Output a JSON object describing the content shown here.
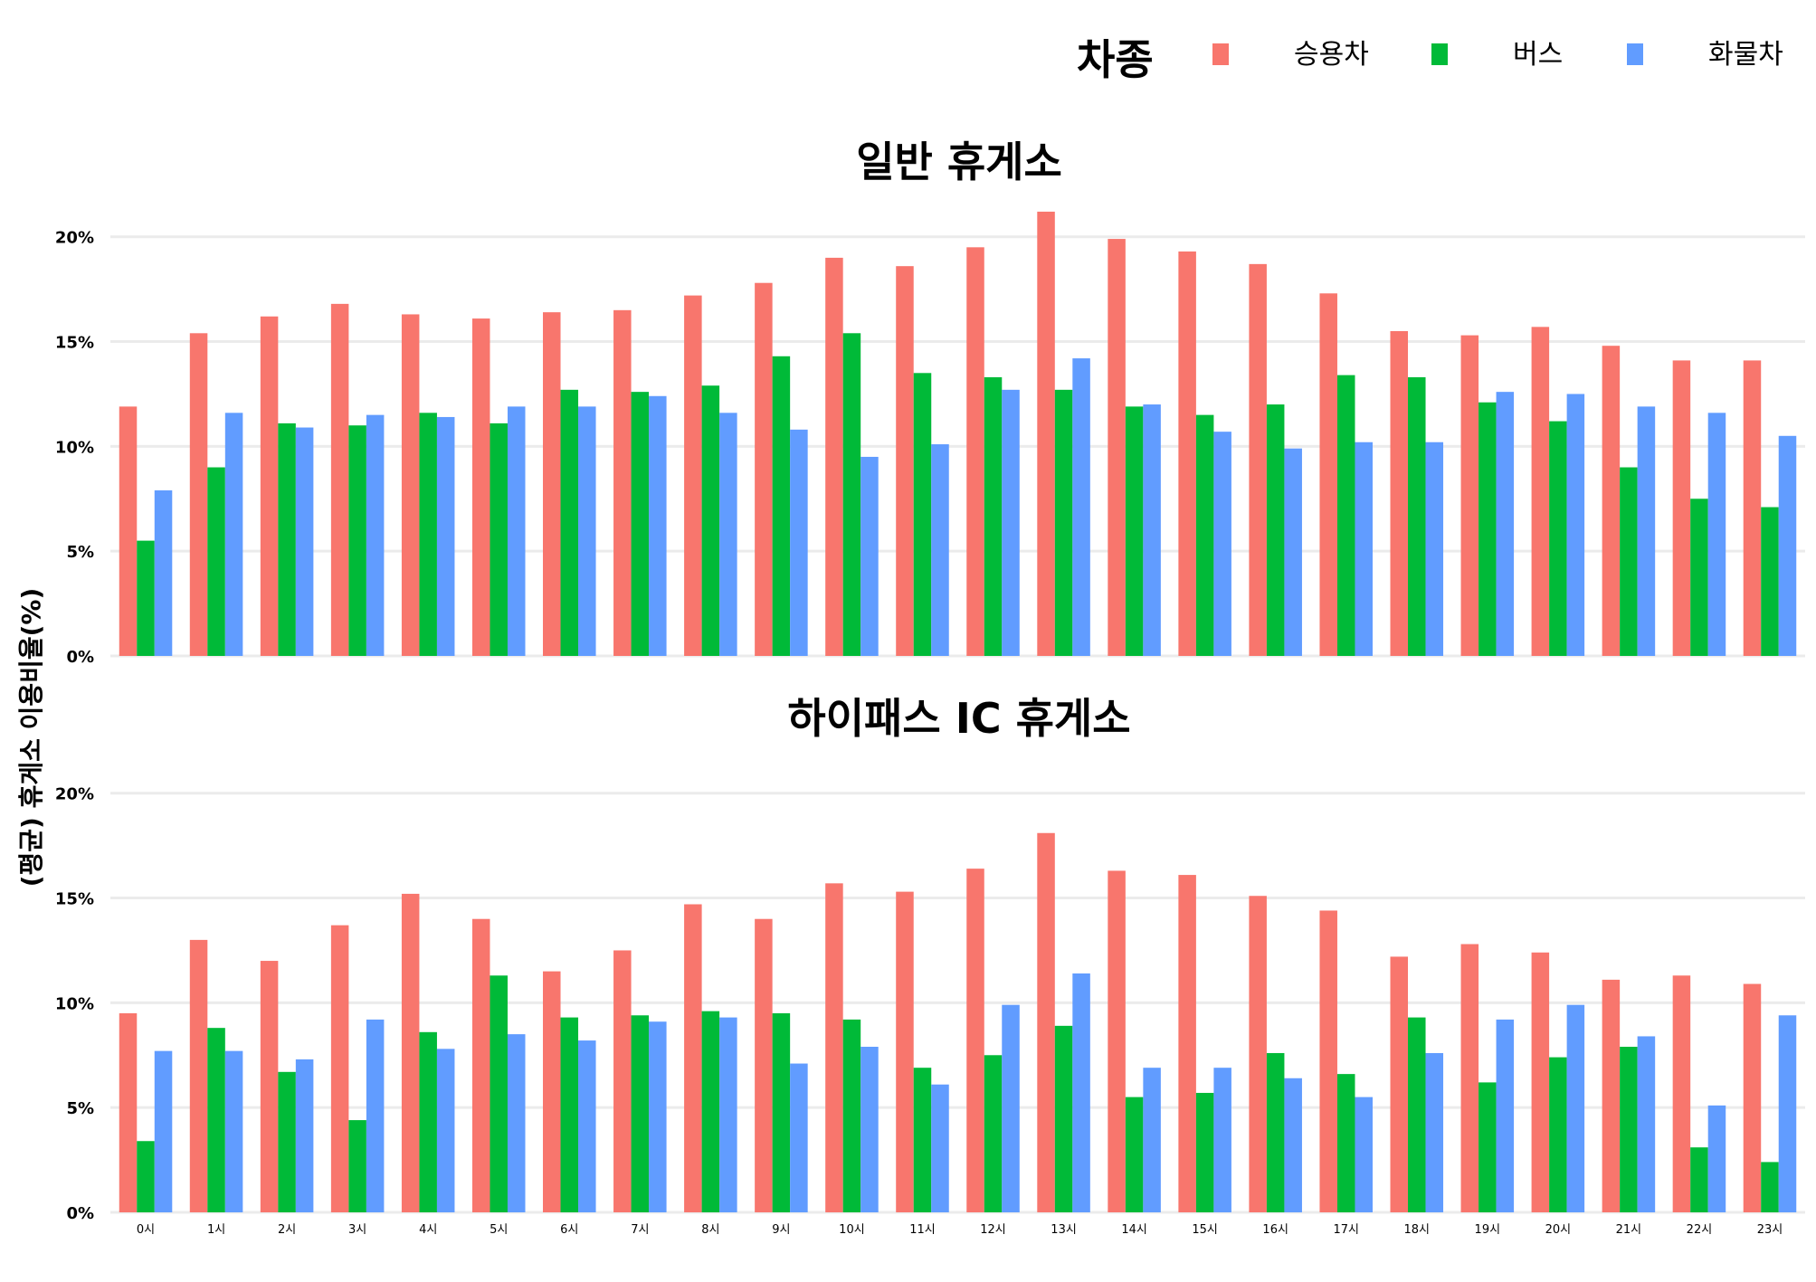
{
  "legend": {
    "title": "차종",
    "items": [
      {
        "label": "승용차",
        "color": "#F8766D"
      },
      {
        "label": "버스",
        "color": "#00BA38"
      },
      {
        "label": "화물차",
        "color": "#619CFF"
      }
    ]
  },
  "y_axis_label": "(평균) 휴게소 이용비율(%)",
  "chart_data": [
    {
      "type": "bar",
      "title": "일반 휴게소",
      "categories": [
        "0시",
        "1시",
        "2시",
        "3시",
        "4시",
        "5시",
        "6시",
        "7시",
        "8시",
        "9시",
        "10시",
        "11시",
        "12시",
        "13시",
        "14시",
        "15시",
        "16시",
        "17시",
        "18시",
        "19시",
        "20시",
        "21시",
        "22시",
        "23시"
      ],
      "ylim": [
        0,
        21.5
      ],
      "yticks": [
        0,
        5,
        10,
        15,
        20
      ],
      "ytick_labels": [
        "0%",
        "5%",
        "10%",
        "15%",
        "20%"
      ],
      "series": [
        {
          "name": "승용차",
          "values": [
            11.9,
            15.4,
            16.2,
            16.8,
            16.3,
            16.1,
            16.4,
            16.5,
            17.2,
            17.8,
            19.0,
            18.6,
            19.5,
            21.2,
            19.9,
            19.3,
            18.7,
            17.3,
            15.5,
            15.3,
            15.7,
            14.8,
            14.1,
            14.1
          ]
        },
        {
          "name": "버스",
          "values": [
            5.5,
            9.0,
            11.1,
            11.0,
            11.6,
            11.1,
            12.7,
            12.6,
            12.9,
            14.3,
            15.4,
            13.5,
            13.3,
            12.7,
            11.9,
            11.5,
            12.0,
            13.4,
            13.3,
            12.1,
            11.2,
            9.0,
            7.5,
            7.1
          ]
        },
        {
          "name": "화물차",
          "values": [
            7.9,
            11.6,
            10.9,
            11.5,
            11.4,
            11.9,
            11.9,
            12.4,
            11.6,
            10.8,
            9.5,
            10.1,
            12.7,
            14.2,
            12.0,
            10.7,
            9.9,
            10.2,
            10.2,
            12.6,
            12.5,
            11.9,
            11.6,
            10.5
          ]
        }
      ]
    },
    {
      "type": "bar",
      "title": "하이패스 IC 휴게소",
      "categories": [
        "0시",
        "1시",
        "2시",
        "3시",
        "4시",
        "5시",
        "6시",
        "7시",
        "8시",
        "9시",
        "10시",
        "11시",
        "12시",
        "13시",
        "14시",
        "15시",
        "16시",
        "17시",
        "18시",
        "19시",
        "20시",
        "21시",
        "22시",
        "23시"
      ],
      "ylim": [
        0,
        21.5
      ],
      "yticks": [
        0,
        5,
        10,
        15,
        20
      ],
      "ytick_labels": [
        "0%",
        "5%",
        "10%",
        "15%",
        "20%"
      ],
      "series": [
        {
          "name": "승용차",
          "values": [
            9.5,
            13.0,
            12.0,
            13.7,
            15.2,
            14.0,
            11.5,
            12.5,
            14.7,
            14.0,
            15.7,
            15.3,
            16.4,
            18.1,
            16.3,
            16.1,
            15.1,
            14.4,
            12.2,
            12.8,
            12.4,
            11.1,
            11.3,
            10.9
          ]
        },
        {
          "name": "버스",
          "values": [
            3.4,
            8.8,
            6.7,
            4.4,
            8.6,
            11.3,
            9.3,
            9.4,
            9.6,
            9.5,
            9.2,
            6.9,
            7.5,
            8.9,
            5.5,
            5.7,
            7.6,
            6.6,
            9.3,
            6.2,
            7.4,
            7.9,
            3.1,
            2.4
          ]
        },
        {
          "name": "화물차",
          "values": [
            7.7,
            7.7,
            7.3,
            9.2,
            7.8,
            8.5,
            8.2,
            9.1,
            9.3,
            7.1,
            7.9,
            6.1,
            9.9,
            11.4,
            6.9,
            6.9,
            6.4,
            5.5,
            7.6,
            9.2,
            9.9,
            8.4,
            5.1,
            9.4
          ]
        }
      ]
    }
  ]
}
